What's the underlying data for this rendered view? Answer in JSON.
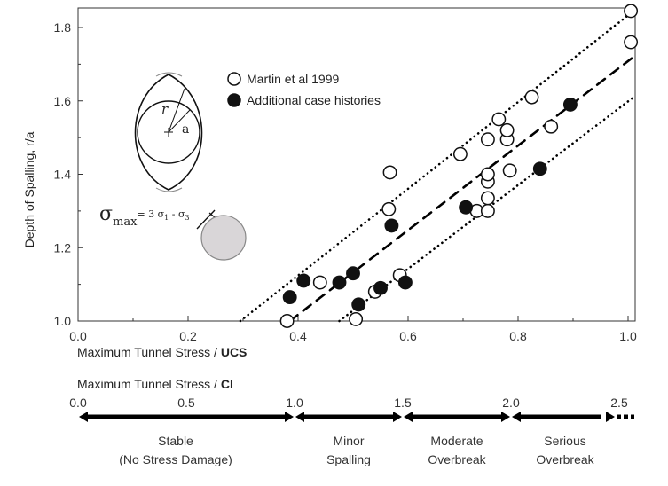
{
  "chart_data": {
    "type": "scatter",
    "ylabel": "Depth of Spalling, r/a",
    "xlabel": "Maximum Tunnel Stress / UCS",
    "xlim": [
      0.0,
      1.0
    ],
    "ylim": [
      1.0,
      1.85
    ],
    "x_ticks": [
      "0.0",
      "0.2",
      "0.4",
      "0.6",
      "0.8",
      "1.0"
    ],
    "x_tick_values": [
      0.0,
      0.2,
      0.4,
      0.6,
      0.8,
      1.0
    ],
    "y_ticks": [
      "1.0",
      "1.2",
      "1.4",
      "1.6",
      "1.8"
    ],
    "y_tick_values": [
      1.0,
      1.2,
      1.4,
      1.6,
      1.8
    ],
    "grid": false,
    "series": [
      {
        "name": "Martin et al 1999",
        "marker": "open-circle",
        "color": "#000000",
        "points": [
          [
            0.38,
            1.0
          ],
          [
            0.44,
            1.105
          ],
          [
            0.505,
            1.005
          ],
          [
            0.54,
            1.08
          ],
          [
            0.565,
            1.305
          ],
          [
            0.567,
            1.405
          ],
          [
            0.585,
            1.125
          ],
          [
            0.695,
            1.455
          ],
          [
            0.725,
            1.3
          ],
          [
            0.745,
            1.3
          ],
          [
            0.745,
            1.335
          ],
          [
            0.745,
            1.38
          ],
          [
            0.745,
            1.4
          ],
          [
            0.745,
            1.495
          ],
          [
            0.765,
            1.55
          ],
          [
            0.78,
            1.495
          ],
          [
            0.78,
            1.52
          ],
          [
            0.785,
            1.41
          ],
          [
            0.825,
            1.61
          ],
          [
            0.86,
            1.53
          ],
          [
            1.005,
            1.76
          ],
          [
            1.005,
            1.845
          ]
        ]
      },
      {
        "name": "Additional case histories",
        "marker": "filled-circle",
        "color": "#000000",
        "points": [
          [
            0.385,
            1.065
          ],
          [
            0.41,
            1.11
          ],
          [
            0.475,
            1.105
          ],
          [
            0.5,
            1.13
          ],
          [
            0.51,
            1.045
          ],
          [
            0.55,
            1.09
          ],
          [
            0.57,
            1.26
          ],
          [
            0.595,
            1.105
          ],
          [
            0.705,
            1.31
          ],
          [
            0.84,
            1.415
          ],
          [
            0.895,
            1.59
          ]
        ]
      }
    ],
    "trend_lines": [
      {
        "style": "dotted",
        "x": [
          0.295,
          1.01
        ],
        "y": [
          1.0,
          1.845
        ]
      },
      {
        "style": "dashed",
        "x": [
          0.385,
          1.01
        ],
        "y": [
          1.0,
          1.72
        ]
      },
      {
        "style": "dotted",
        "x": [
          0.475,
          1.01
        ],
        "y": [
          1.0,
          1.61
        ]
      }
    ],
    "legend": {
      "placement": "top-left"
    },
    "inset": {
      "radius_label": "r",
      "a_label": "a",
      "sigma_symbol": "σ",
      "sigma_sub": "max",
      "sigma_expression": "= 3 σ",
      "sigma_sub1": "1",
      "sigma_minus": " - σ",
      "sigma_sub3": "3"
    },
    "secondary_axis": {
      "title_prefix": "Maximum Tunnel Stress / ",
      "title_bold": "CI",
      "xlim": [
        0.0,
        2.5
      ],
      "ticks": [
        "0.0",
        "0.5",
        "1.0",
        "1.5",
        "2.0",
        "2.5"
      ],
      "tick_values": [
        0.0,
        0.5,
        1.0,
        1.5,
        2.0,
        2.5
      ]
    },
    "primary_axis_title_prefix": "Maximum Tunnel Stress / ",
    "primary_axis_title_bold": "UCS",
    "zones": [
      {
        "from": 0.0,
        "to": 1.0,
        "line1": "Stable",
        "line2": "(No Stress Damage)"
      },
      {
        "from": 1.0,
        "to": 1.5,
        "line1": "Minor",
        "line2": "Spalling"
      },
      {
        "from": 1.5,
        "to": 2.0,
        "line1": "Moderate",
        "line2": "Overbreak"
      },
      {
        "from": 2.0,
        "to": 2.5,
        "line1": "Serious",
        "line2": "Overbreak"
      }
    ]
  }
}
